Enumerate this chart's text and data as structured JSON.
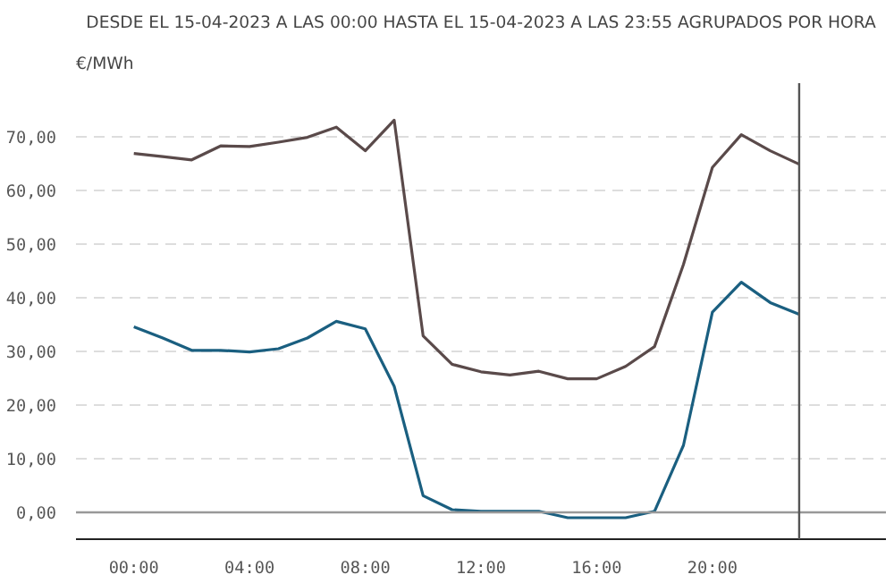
{
  "chart_data": {
    "type": "line",
    "title": "DESDE EL 15-04-2023 A LAS 00:00 HASTA EL 15-04-2023 A LAS 23:55 AGRUPADOS POR HORA",
    "ylabel": "€/MWh",
    "x": [
      0,
      1,
      2,
      3,
      4,
      5,
      6,
      7,
      8,
      9,
      10,
      11,
      12,
      13,
      14,
      15,
      16,
      17,
      18,
      19,
      20,
      21,
      22,
      23
    ],
    "series": [
      {
        "color": "#5a4a4a",
        "values": [
          66.9,
          66.3,
          65.7,
          68.3,
          68.2,
          69.0,
          69.9,
          71.8,
          67.4,
          73.1,
          32.9,
          27.6,
          26.2,
          25.6,
          26.3,
          24.9,
          24.9,
          27.2,
          30.9,
          46.2,
          64.3,
          70.4,
          67.4,
          64.9
        ]
      },
      {
        "color": "#1a5f80",
        "values": [
          34.6,
          32.5,
          30.2,
          30.2,
          29.9,
          30.5,
          32.5,
          35.6,
          34.2,
          23.5,
          3.1,
          0.5,
          0.2,
          0.2,
          0.2,
          -1.0,
          -1.0,
          -1.0,
          0.2,
          12.5,
          37.3,
          42.9,
          39.1,
          36.9
        ]
      }
    ],
    "xlim": [
      -2,
      26
    ],
    "ylim": [
      -5,
      80
    ],
    "xticks": [
      {
        "value": 0,
        "label": "00:00"
      },
      {
        "value": 4,
        "label": "04:00"
      },
      {
        "value": 8,
        "label": "08:00"
      },
      {
        "value": 12,
        "label": "12:00"
      },
      {
        "value": 16,
        "label": "16:00"
      },
      {
        "value": 20,
        "label": "20:00"
      }
    ],
    "yticks": [
      {
        "value": 0,
        "label": "0,00"
      },
      {
        "value": 10,
        "label": "10,00"
      },
      {
        "value": 20,
        "label": "20,00"
      },
      {
        "value": 30,
        "label": "30,00"
      },
      {
        "value": 40,
        "label": "40,00"
      },
      {
        "value": 50,
        "label": "50,00"
      },
      {
        "value": 60,
        "label": "60,00"
      },
      {
        "value": 70,
        "label": "70,00"
      }
    ],
    "grid": "y",
    "ref_lines": [
      {
        "axis": "y",
        "value": 0,
        "color": "#999999"
      },
      {
        "axis": "x",
        "value": 23,
        "color": "#555555"
      }
    ],
    "marker": "none",
    "line_style": "solid"
  }
}
